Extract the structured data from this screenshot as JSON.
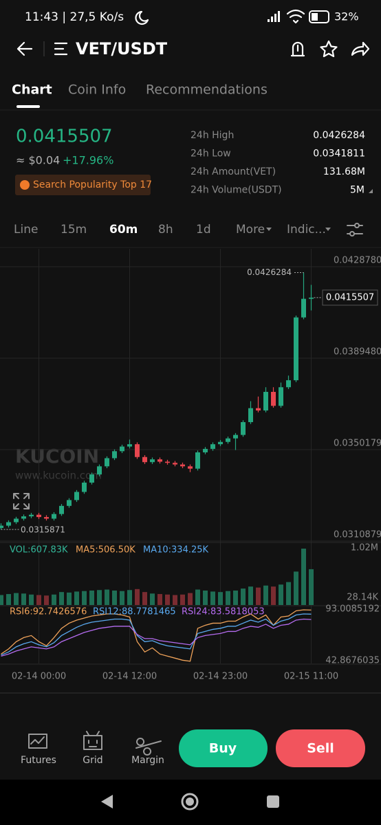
{
  "status_bar": {
    "time": "11:43 | 27,5 Ko/s",
    "battery": "32%"
  },
  "header": {
    "title": "VET/USDT"
  },
  "tabs": [
    "Chart",
    "Coin Info",
    "Recommendations"
  ],
  "ticker": {
    "price": "0.0415507",
    "fiat": "≈ $0.04",
    "change": "+17.96%",
    "badge": "Search Popularity Top 17",
    "stats": [
      {
        "label": "24h High",
        "value": "0.0426284"
      },
      {
        "label": "24h Low",
        "value": "0.0341811"
      },
      {
        "label": "24h Amount(VET)",
        "value": "131.68M"
      },
      {
        "label": "24h Volume(USDT)",
        "value": "5M"
      }
    ]
  },
  "intervals": [
    "Line",
    "15m",
    "60m",
    "8h",
    "1d",
    "More",
    "Indic..."
  ],
  "watermark": {
    "brand": "KUCOIN",
    "url": "www.kucoin.com"
  },
  "chart_data": {
    "type": "candlestick",
    "categories": [
      null,
      null,
      null,
      null,
      null,
      "02-14 00:00",
      null,
      null,
      null,
      null,
      null,
      null,
      null,
      null,
      null,
      null,
      null,
      "02-14 12:00",
      null,
      null,
      null,
      null,
      null,
      null,
      null,
      null,
      null,
      null,
      null,
      "02-14 23:00",
      null,
      null,
      null,
      null,
      null,
      null,
      null,
      null,
      null,
      null,
      null,
      "02-15 11:00"
    ],
    "open": [
      0.03165,
      0.03175,
      0.0319,
      0.03205,
      0.03215,
      0.03222,
      0.03212,
      0.03205,
      0.03225,
      0.0326,
      0.03285,
      0.0332,
      0.0336,
      0.03395,
      0.0343,
      0.03465,
      0.03495,
      0.03515,
      0.03525,
      0.0347,
      0.03448,
      0.0346,
      0.0345,
      0.03445,
      0.03438,
      0.0343,
      0.0342,
      0.0349,
      0.03505,
      0.03525,
      0.03535,
      0.0355,
      0.03565,
      0.0362,
      0.0368,
      0.0367,
      0.0375,
      0.0369,
      0.0377,
      0.038,
      0.0407,
      0.0415
    ],
    "high": [
      0.03185,
      0.03198,
      0.03213,
      0.03223,
      0.0323,
      0.0323,
      0.0322,
      0.03233,
      0.03268,
      0.03293,
      0.03328,
      0.03368,
      0.03403,
      0.03438,
      0.03473,
      0.03503,
      0.03523,
      0.03545,
      0.03533,
      0.03478,
      0.03468,
      0.03468,
      0.03458,
      0.03453,
      0.03446,
      0.03438,
      0.03498,
      0.03513,
      0.03533,
      0.03543,
      0.03558,
      0.03573,
      0.03628,
      0.0371,
      0.0373,
      0.0377,
      0.0377,
      0.0379,
      0.0382,
      0.04078,
      0.0426284,
      0.0421
    ],
    "low": [
      0.0315871,
      0.03167,
      0.03182,
      0.03197,
      0.03207,
      0.03204,
      0.03197,
      0.03197,
      0.03217,
      0.03252,
      0.03277,
      0.03312,
      0.03352,
      0.03387,
      0.03422,
      0.03457,
      0.03487,
      0.03507,
      0.03462,
      0.0344,
      0.0344,
      0.03442,
      0.03437,
      0.0343,
      0.03422,
      0.03405,
      0.03412,
      0.03482,
      0.03497,
      0.03517,
      0.03527,
      0.035,
      0.03557,
      0.03612,
      0.03662,
      0.03662,
      0.03682,
      0.03682,
      0.03762,
      0.03792,
      0.04062,
      0.041
    ],
    "close": [
      0.03175,
      0.0319,
      0.03205,
      0.03215,
      0.03222,
      0.03212,
      0.03205,
      0.03225,
      0.0326,
      0.03285,
      0.0332,
      0.0336,
      0.03395,
      0.0343,
      0.03465,
      0.03495,
      0.03515,
      0.03525,
      0.0347,
      0.03448,
      0.0346,
      0.0345,
      0.03445,
      0.03438,
      0.0343,
      0.0342,
      0.0349,
      0.03505,
      0.03525,
      0.03535,
      0.0355,
      0.03565,
      0.0362,
      0.0368,
      0.0367,
      0.0375,
      0.0369,
      0.0377,
      0.038,
      0.0407,
      0.0415,
      0.0415507
    ],
    "up_color": "#25a880",
    "down_color": "#e8464f",
    "ylim": [
      0.0310879,
      0.042878
    ],
    "yticks": [
      {
        "value": 0.042878,
        "label": "0.0428780"
      },
      {
        "value": 0.038948,
        "label": "0.0389480"
      },
      0.0350179,
      0.0310879
    ],
    "grid": true,
    "volume": {
      "legend": [
        "VOL:607.83K",
        "MA5:506.50K",
        "MA10:334.25K"
      ],
      "colors": [
        "#33b89a",
        "#f0a35a",
        "#5aaaf0"
      ],
      "values": [
        90000,
        110000,
        130000,
        120000,
        100000,
        90000,
        80000,
        100000,
        150000,
        140000,
        160000,
        170000,
        180000,
        190000,
        200000,
        180000,
        170000,
        190000,
        210000,
        150000,
        120000,
        110000,
        100000,
        90000,
        100000,
        130000,
        200000,
        180000,
        160000,
        150000,
        170000,
        180000,
        220000,
        260000,
        240000,
        280000,
        260000,
        300000,
        350000,
        560000,
        1020000,
        607830
      ],
      "ylim": [
        28140,
        1020000
      ],
      "yticks": [
        {
          "value": 1020000,
          "label": "1.02M"
        },
        {
          "value": 28140,
          "label": "28.14K"
        }
      ]
    },
    "rsi": {
      "series": [
        {
          "name": "RSI6:92.7426576",
          "color": "#f0a35a",
          "values": [
            50,
            55,
            62,
            66,
            68,
            62,
            58,
            66,
            75,
            80,
            83,
            85,
            87,
            88,
            89,
            89,
            88,
            86,
            62,
            52,
            56,
            50,
            48,
            46,
            44,
            43,
            75,
            78,
            80,
            80,
            82,
            82,
            86,
            89,
            84,
            88,
            78,
            86,
            87,
            92,
            93,
            92.7426576
          ]
        },
        {
          "name": "RSI12:88.7781465",
          "color": "#5aaaf0",
          "values": [
            49,
            52,
            57,
            60,
            62,
            59,
            57,
            61,
            68,
            72,
            76,
            79,
            81,
            82,
            83,
            84,
            84,
            83,
            68,
            62,
            63,
            60,
            58,
            57,
            56,
            55,
            70,
            72,
            74,
            75,
            77,
            77,
            80,
            83,
            81,
            84,
            78,
            82,
            84,
            88,
            89,
            88.7781465
          ]
        },
        {
          "name": "RSI24:83.5818053",
          "color": "#b56cf0",
          "values": [
            48,
            50,
            53,
            55,
            57,
            56,
            55,
            57,
            62,
            65,
            68,
            71,
            73,
            75,
            76,
            77,
            77,
            77,
            69,
            65,
            65,
            63,
            62,
            61,
            60,
            59,
            66,
            68,
            69,
            70,
            72,
            72,
            75,
            77,
            76,
            79,
            75,
            78,
            79,
            83,
            84,
            83.5818053
          ]
        }
      ],
      "ylim": [
        42.8676035,
        93.0085192
      ],
      "yticks": [
        93.0085192,
        42.8676035
      ]
    }
  },
  "bottom_bar": {
    "actions": [
      "Futures",
      "Grid",
      "Margin"
    ],
    "buy": "Buy",
    "sell": "Sell"
  }
}
